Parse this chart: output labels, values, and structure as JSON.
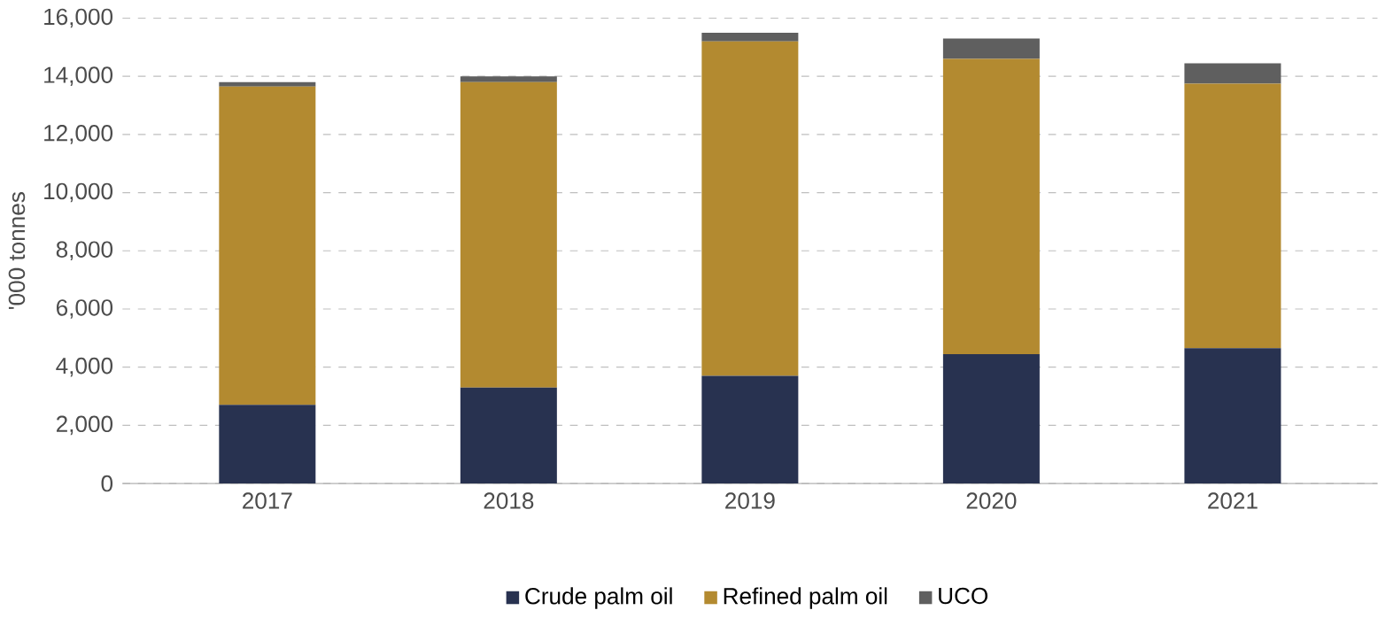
{
  "chart_data": {
    "type": "bar",
    "stacked": true,
    "ylabel": "'000 tonnes",
    "categories": [
      "2017",
      "2018",
      "2019",
      "2020",
      "2021"
    ],
    "series": [
      {
        "name": "Crude palm oil",
        "color": "#283250",
        "values": [
          2700,
          3300,
          3700,
          4450,
          4650
        ]
      },
      {
        "name": "Refined palm oil",
        "color": "#b38a30",
        "values": [
          10950,
          10500,
          11500,
          10150,
          9100
        ]
      },
      {
        "name": "UCO",
        "color": "#5f5f5f",
        "values": [
          150,
          200,
          300,
          700,
          700
        ]
      }
    ],
    "ylim": [
      0,
      16000
    ],
    "yticks": [
      0,
      {
        "value": 2000,
        "label": "2,000"
      },
      {
        "value": 4000,
        "label": "4,000"
      },
      {
        "value": 6000,
        "label": "6,000"
      },
      {
        "value": 8000,
        "label": "8,000"
      },
      {
        "value": 10000,
        "label": "10,000"
      },
      {
        "value": 12000,
        "label": "12,000"
      },
      {
        "value": 14000,
        "label": "14,000"
      },
      {
        "value": 16000,
        "label": "16,000"
      }
    ],
    "grid": "y",
    "legend": "bottom"
  }
}
